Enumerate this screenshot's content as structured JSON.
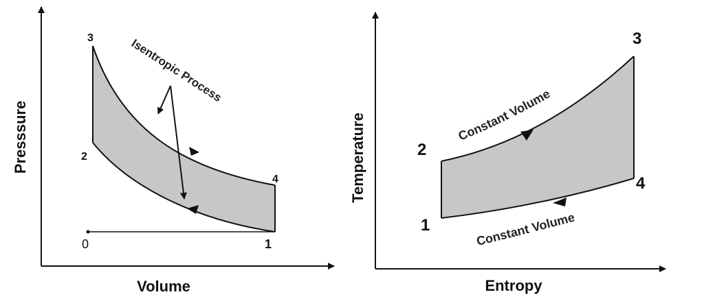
{
  "colors": {
    "line": "#111111",
    "fill": "#c6c7c9",
    "background": "#ffffff"
  },
  "pv": {
    "x_label": "Volume",
    "y_label": "Presssure",
    "points": {
      "p0": "0",
      "p1": "1",
      "p2": "2",
      "p3": "3",
      "p4": "4"
    },
    "annotation": "Isentropic Process"
  },
  "ts": {
    "x_label": "Entropy",
    "y_label": "Temperature",
    "points": {
      "p1": "1",
      "p2": "2",
      "p3": "3",
      "p4": "4"
    },
    "upper_curve_label": "Constant Volume",
    "lower_curve_label": "Constant Volume"
  }
}
